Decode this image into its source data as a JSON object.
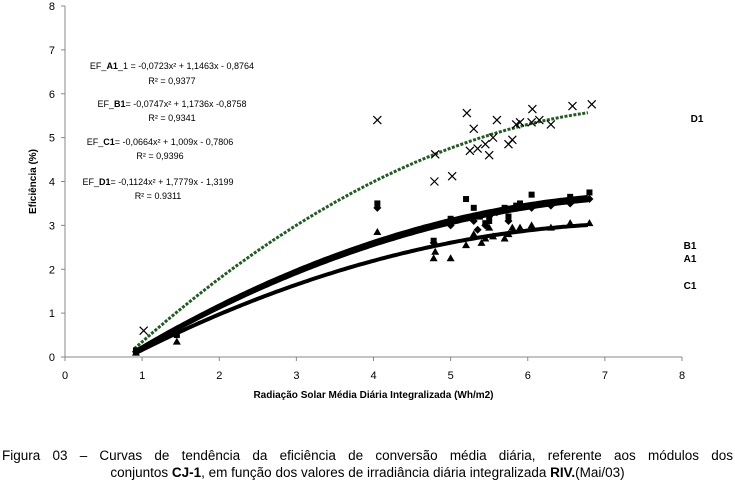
{
  "chart_data": {
    "type": "scatter",
    "title": "",
    "xlabel": "Radiação Solar Média Diária Integralizada (Wh/m2)",
    "ylabel": "Eficiência (%)",
    "xlim": [
      0,
      8
    ],
    "ylim": [
      0,
      8
    ],
    "xticks": [
      "0",
      "1",
      "2",
      "3",
      "4",
      "5",
      "6",
      "7",
      "8"
    ],
    "yticks": [
      "0",
      "1",
      "2",
      "3",
      "4",
      "5",
      "6",
      "7",
      "8"
    ],
    "yticks_suffix": "",
    "grid": false,
    "colors": {
      "D1": "#1e5e1e",
      "A1": "#000000",
      "B1": "#000000",
      "C1": "#000000"
    },
    "series": [
      {
        "name": "A1",
        "label": "A1",
        "marker": "diamond",
        "fit": {
          "a": -0.0723,
          "b": 1.1463,
          "c": -0.8764
        },
        "equation_prefix": "EF_",
        "equation_bold": "A1",
        "equation_suffix": "_1 = -0,0723x² + 1,1463x - 0,8764",
        "r2": "R² = 0,9377",
        "x": [
          0.92,
          1.45,
          4.05,
          4.78,
          5.0,
          5.3,
          5.35,
          5.45,
          5.5,
          5.6,
          5.75,
          5.85,
          6.05,
          6.3,
          6.55,
          6.8
        ],
        "y": [
          0.12,
          0.55,
          3.4,
          2.6,
          3.0,
          3.1,
          2.9,
          3.0,
          3.2,
          3.3,
          3.1,
          3.4,
          3.4,
          3.45,
          3.5,
          3.6
        ]
      },
      {
        "name": "B1",
        "label": "B1",
        "marker": "square",
        "fit": {
          "a": -0.0747,
          "b": 1.1736,
          "c": -0.8758
        },
        "equation_prefix": "EF_",
        "equation_bold": "B1",
        "equation_suffix": "= -0,0747x² + 1,1736x -0,8758",
        "r2": "R² = 0,9341",
        "x": [
          0.92,
          1.45,
          4.05,
          4.78,
          5.0,
          5.2,
          5.3,
          5.38,
          5.45,
          5.5,
          5.55,
          5.7,
          5.75,
          5.85,
          5.9,
          6.05,
          6.55,
          6.8
        ],
        "y": [
          0.15,
          0.5,
          3.5,
          2.65,
          3.15,
          3.6,
          3.4,
          3.2,
          3.05,
          3.1,
          3.3,
          3.4,
          3.2,
          3.45,
          3.5,
          3.7,
          3.65,
          3.75
        ]
      },
      {
        "name": "C1",
        "label": "C1",
        "marker": "triangle",
        "fit": {
          "a": -0.0664,
          "b": 1.009,
          "c": -0.7806
        },
        "equation_prefix": "EF_",
        "equation_bold": "C1",
        "equation_suffix": "= -0,0664x² + 1,009x - 0,7806",
        "r2": "R² = 0,9396",
        "x": [
          0.92,
          1.45,
          4.05,
          4.78,
          4.8,
          5.0,
          5.2,
          5.3,
          5.4,
          5.45,
          5.5,
          5.55,
          5.7,
          5.75,
          5.8,
          5.9,
          6.05,
          6.3,
          6.55,
          6.8
        ],
        "y": [
          0.1,
          0.35,
          2.85,
          2.25,
          2.4,
          2.25,
          2.55,
          2.8,
          2.6,
          2.7,
          2.95,
          2.75,
          2.7,
          2.8,
          2.95,
          2.95,
          3.0,
          2.95,
          3.05,
          3.05
        ]
      },
      {
        "name": "D1",
        "label": "D1",
        "marker": "x",
        "fit": {
          "a": -0.1124,
          "b": 1.7779,
          "c": -1.3199
        },
        "equation_prefix": "EF_",
        "equation_bold": "D1",
        "equation_suffix": "= -0,1124x² + 1,7779x - 1,3199",
        "r2": "R² = 0.9311",
        "x": [
          1.02,
          4.05,
          4.79,
          5.02,
          4.8,
          5.21,
          5.3,
          5.35,
          5.25,
          5.45,
          5.5,
          5.55,
          5.6,
          5.75,
          5.8,
          5.85,
          5.9,
          6.06,
          6.05,
          6.15,
          6.3,
          6.58,
          6.83
        ],
        "y": [
          0.6,
          5.4,
          4.0,
          4.12,
          4.62,
          5.56,
          5.2,
          4.75,
          4.7,
          4.85,
          4.6,
          5.0,
          5.4,
          4.85,
          4.95,
          5.3,
          5.35,
          5.65,
          5.35,
          5.4,
          5.3,
          5.72,
          5.76
        ]
      }
    ]
  },
  "caption": {
    "line1": "Figura 03 – Curvas de tendência da eficiência de conversão média diária, referente aos módulos dos",
    "line2_a": "conjuntos ",
    "line2_b": "CJ-1",
    "line2_c": ", em função dos valores de irradiância diária integralizada  ",
    "line2_d": "RIV.",
    "line2_e": "(Mai/03)"
  }
}
